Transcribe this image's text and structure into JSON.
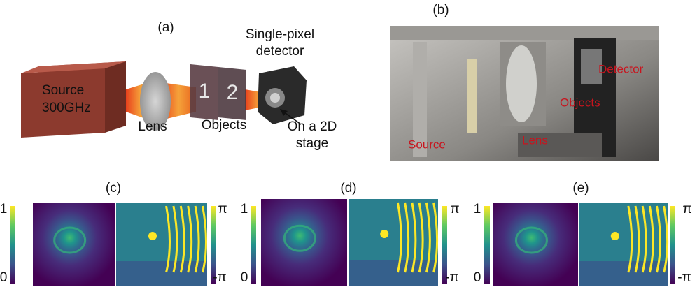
{
  "schematic": {
    "label": "(a)",
    "source": [
      "Source",
      "300GHz"
    ],
    "lens": "Lens",
    "objects": "Objects",
    "object_digits": [
      "1",
      "2"
    ],
    "detector": [
      "Single-pixel",
      "detector"
    ],
    "stage": [
      "On a 2D",
      "stage"
    ]
  },
  "photo": {
    "label": "(b)",
    "annotations": [
      "Source",
      "Lens",
      "Objects",
      "Detector"
    ]
  },
  "results": [
    {
      "label": "(c)",
      "amplitude_ticks": [
        "1",
        "0"
      ],
      "phase_ticks": [
        "π",
        "-π"
      ]
    },
    {
      "label": "(d)",
      "amplitude_ticks": [
        "1",
        "0"
      ],
      "phase_ticks": [
        "π",
        "-π"
      ]
    },
    {
      "label": "(e)",
      "amplitude_ticks": [
        "1",
        "0"
      ],
      "phase_ticks": [
        "π",
        "-π"
      ]
    }
  ]
}
